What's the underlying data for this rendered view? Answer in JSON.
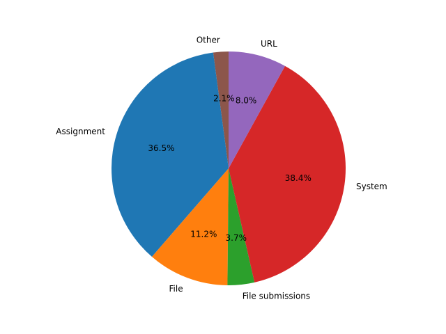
{
  "chart_data": {
    "type": "pie",
    "start_angle_deg": 90,
    "direction": "counterclockwise",
    "slices": [
      {
        "label": "Other",
        "value": 2.1,
        "pct_text": "2.1%",
        "color": "#8c564b"
      },
      {
        "label": "Assignment",
        "value": 36.5,
        "pct_text": "36.5%",
        "color": "#1f77b4"
      },
      {
        "label": "File",
        "value": 11.2,
        "pct_text": "11.2%",
        "color": "#ff7f0e"
      },
      {
        "label": "File submissions",
        "value": 3.7,
        "pct_text": "3.7%",
        "color": "#2ca02c"
      },
      {
        "label": "System",
        "value": 38.4,
        "pct_text": "38.4%",
        "color": "#d62728"
      },
      {
        "label": "URL",
        "value": 8.0,
        "pct_text": "8.0%",
        "color": "#9467bd"
      }
    ]
  }
}
